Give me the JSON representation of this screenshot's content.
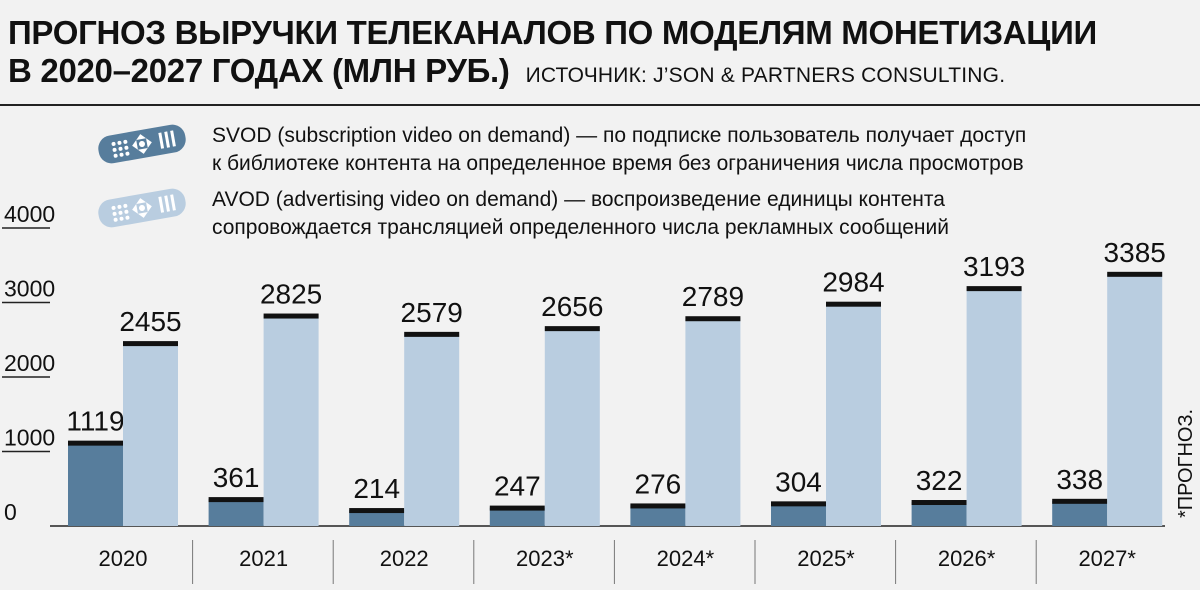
{
  "header": {
    "title_line1": "ПРОГНОЗ ВЫРУЧКИ ТЕЛЕКАНАЛОВ ПО МОДЕЛЯМ МОНЕТИЗАЦИИ",
    "title_line2": "В 2020–2027 ГОДАХ (МЛН РУБ.)",
    "source": "ИСТОЧНИК: J’SON & PARTNERS CONSULTING."
  },
  "legend": [
    {
      "icon": "tv-remote-icon",
      "color": "#577d9c",
      "line1": "SVOD (subscription video on demand) — по подписке пользователь получает доступ",
      "line2": "к библиотеке контента на определенное время без ограничения числа просмотров"
    },
    {
      "icon": "tv-remote-icon",
      "color": "#b9cde0",
      "line1": "AVOD (advertising video on demand) — воспроизведение единицы контента",
      "line2": "сопровождается трансляцией определенного числа рекламных сообщений"
    }
  ],
  "footnote": "*ПРОГНОЗ.",
  "chart_data": {
    "type": "bar",
    "categories": [
      "2020",
      "2021",
      "2022",
      "2023*",
      "2024*",
      "2025*",
      "2026*",
      "2027*"
    ],
    "series": [
      {
        "name": "SVOD",
        "color": "#577d9c",
        "values": [
          1119,
          361,
          214,
          247,
          276,
          304,
          322,
          338
        ]
      },
      {
        "name": "AVOD",
        "color": "#b9cde0",
        "values": [
          2455,
          2825,
          2579,
          2656,
          2789,
          2984,
          3193,
          3385
        ]
      }
    ],
    "yticks": [
      "0",
      "1000",
      "2000",
      "3000",
      "4000"
    ],
    "ylim": [
      0,
      4000
    ],
    "grid": false,
    "legend": "top"
  }
}
